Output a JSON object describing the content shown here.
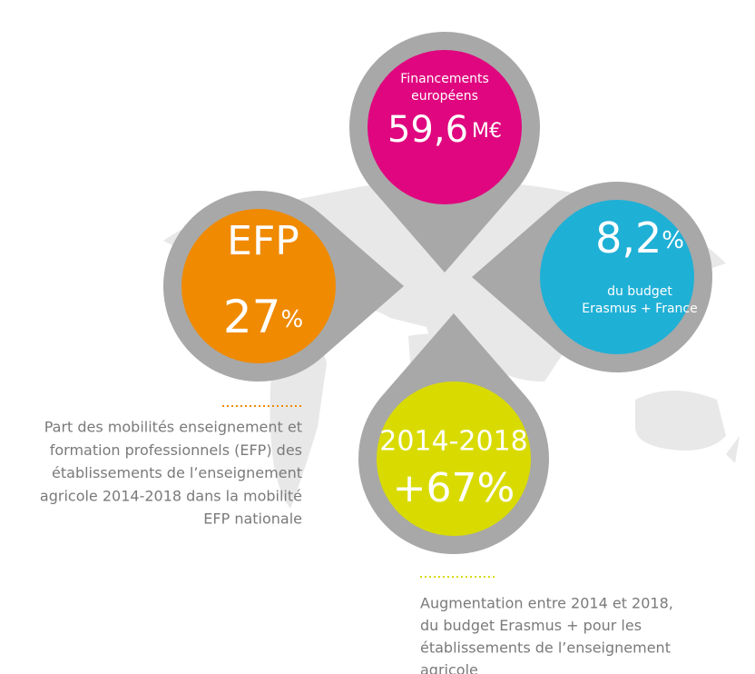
{
  "pins": [
    {
      "title": "Financements européens",
      "title_lines": [
        "Financements",
        "européens"
      ],
      "value": "59,6",
      "unit": "M€"
    },
    {
      "title": "EFP",
      "value": "27",
      "unit": "%"
    },
    {
      "value": "8,2",
      "unit": "%",
      "subtitle_lines": [
        "du budget",
        "Erasmus + France"
      ]
    },
    {
      "title": "2014-2018",
      "value": "+67%"
    }
  ],
  "captions": [
    {
      "lines": [
        "Part des mobilités enseignement et",
        "formation professionnels (EFP) des",
        "établissements de l’enseignement",
        "agricole 2014-2018 dans la mobilité",
        "EFP nationale"
      ]
    },
    {
      "lines": [
        "Augmentation entre 2014 et 2018,",
        "du budget Erasmus + pour les",
        "établissements de l’enseignement",
        "agricole"
      ]
    }
  ]
}
